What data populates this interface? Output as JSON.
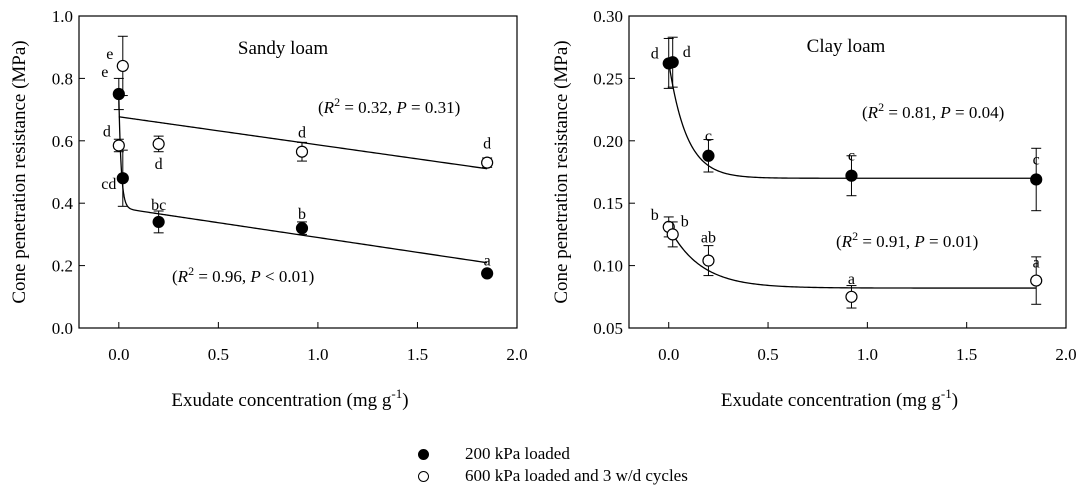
{
  "legend": [
    {
      "label": "200 kPa loaded",
      "marker": "filled"
    },
    {
      "label": "600 kPa loaded and 3 w/d cycles",
      "marker": "open"
    }
  ],
  "chart_data": [
    {
      "type": "scatter",
      "title": "Sandy loam",
      "xlabel": "Exudate concentration (mg g-1)",
      "xlabel_main": "Exudate concentration (mg g",
      "xlabel_sup": "-1",
      "xlabel_tail": ")",
      "ylabel": "Cone penetration resistance (MPa)",
      "xlim": [
        -0.2,
        2.0
      ],
      "ylim": [
        0.0,
        1.0
      ],
      "xticks": [
        "0.0",
        "0.5",
        "1.0",
        "1.5",
        "2.0"
      ],
      "yticks": [
        "0.0",
        "0.2",
        "0.4",
        "0.6",
        "0.8",
        "1.0"
      ],
      "series": [
        {
          "name": "200 kPa loaded",
          "marker": "filled",
          "points": [
            {
              "x": 0.0,
              "y": 0.75,
              "err": 0.05,
              "label": "e"
            },
            {
              "x": 0.02,
              "y": 0.48,
              "err": 0.09,
              "label": "cd"
            },
            {
              "x": 0.2,
              "y": 0.34,
              "err": 0.035,
              "label": "bc"
            },
            {
              "x": 0.92,
              "y": 0.32,
              "err": 0.02,
              "label": "b"
            },
            {
              "x": 1.85,
              "y": 0.175,
              "err": 0.01,
              "label": "a"
            }
          ],
          "annotation": {
            "r2": "0.96",
            "p": "< 0.01"
          }
        },
        {
          "name": "600 kPa loaded and 3 w/d cycles",
          "marker": "open",
          "points": [
            {
              "x": 0.02,
              "y": 0.84,
              "err": 0.095,
              "label": "e"
            },
            {
              "x": 0.0,
              "y": 0.585,
              "err": 0.02,
              "label": "d"
            },
            {
              "x": 0.2,
              "y": 0.59,
              "err": 0.025,
              "label": "d"
            },
            {
              "x": 0.92,
              "y": 0.565,
              "err": 0.03,
              "label": "d"
            },
            {
              "x": 1.85,
              "y": 0.53,
              "err": 0.015,
              "label": "d"
            }
          ],
          "annotation": {
            "r2": "0.32",
            "p": "= 0.31"
          }
        }
      ]
    },
    {
      "type": "scatter",
      "title": "Clay loam",
      "xlabel": "Exudate concentration (mg g-1)",
      "xlabel_main": "Exudate concentration (mg g",
      "xlabel_sup": "-1",
      "xlabel_tail": ")",
      "ylabel": "Cone penetration resistance (MPa)",
      "xlim": [
        -0.2,
        2.0
      ],
      "ylim": [
        0.05,
        0.3
      ],
      "xticks": [
        "0.0",
        "0.5",
        "1.0",
        "1.5",
        "2.0"
      ],
      "yticks": [
        "0.05",
        "0.10",
        "0.15",
        "0.20",
        "0.25",
        "0.30"
      ],
      "series": [
        {
          "name": "200 kPa loaded",
          "marker": "filled",
          "points": [
            {
              "x": 0.0,
              "y": 0.262,
              "err": 0.02,
              "label": "d"
            },
            {
              "x": 0.02,
              "y": 0.263,
              "err": 0.02,
              "label": "d"
            },
            {
              "x": 0.2,
              "y": 0.188,
              "err": 0.013,
              "label": "c"
            },
            {
              "x": 0.92,
              "y": 0.172,
              "err": 0.016,
              "label": "c"
            },
            {
              "x": 1.85,
              "y": 0.169,
              "err": 0.025,
              "label": "c"
            }
          ],
          "annotation": {
            "r2": "0.91",
            "p": "= 0.01"
          }
        },
        {
          "name": "600 kPa loaded and 3 w/d cycles",
          "marker": "open",
          "points": [
            {
              "x": 0.0,
              "y": 0.131,
              "err": 0.008,
              "label": "b"
            },
            {
              "x": 0.02,
              "y": 0.125,
              "err": 0.01,
              "label": "b"
            },
            {
              "x": 0.2,
              "y": 0.104,
              "err": 0.012,
              "label": "ab"
            },
            {
              "x": 0.92,
              "y": 0.075,
              "err": 0.009,
              "label": "a"
            },
            {
              "x": 1.85,
              "y": 0.088,
              "err": 0.019,
              "label": "a"
            }
          ],
          "annotation": {
            "r2": "0.81",
            "p": "= 0.04"
          }
        }
      ]
    }
  ]
}
